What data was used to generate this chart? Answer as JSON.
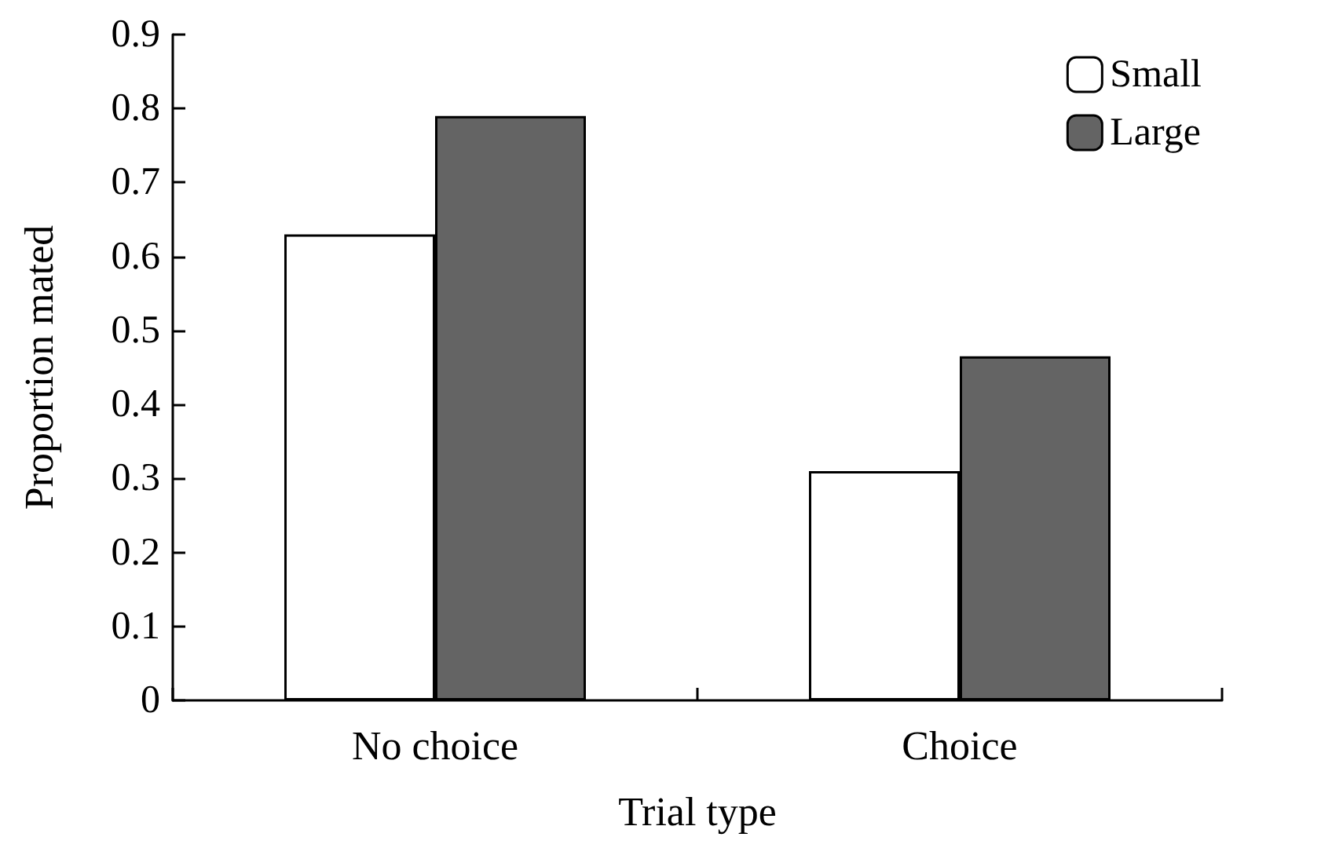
{
  "chart_data": {
    "type": "bar",
    "xlabel": "Trial type",
    "ylabel": "Proportion mated",
    "categories": [
      "No choice",
      "Choice"
    ],
    "series": [
      {
        "name": "Small",
        "color": "#ffffff",
        "values": [
          0.63,
          0.31
        ]
      },
      {
        "name": "Large",
        "color": "#646464",
        "values": [
          0.79,
          0.465
        ]
      }
    ],
    "ylim": [
      0,
      0.9
    ],
    "yticks": [
      0,
      0.1,
      0.2,
      0.3,
      0.4,
      0.5,
      0.6,
      0.7,
      0.8,
      0.9
    ],
    "grid": false,
    "legend": "top right"
  }
}
